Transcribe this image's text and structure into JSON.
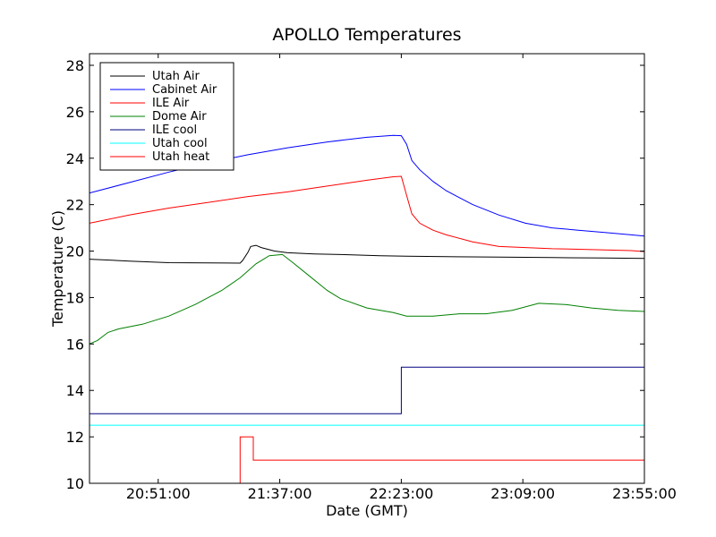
{
  "chart_data": {
    "type": "line",
    "title": "APOLLO Temperatures",
    "xlabel": "Date (GMT)",
    "ylabel": "Temperature (C)",
    "xlim": [
      1225,
      1435
    ],
    "ylim": [
      10,
      28.5
    ],
    "yticks": [
      10,
      12,
      14,
      16,
      18,
      20,
      22,
      24,
      26,
      28
    ],
    "xticks": [
      {
        "value": 1251,
        "label": "20:51:00"
      },
      {
        "value": 1297,
        "label": "21:37:00"
      },
      {
        "value": 1343,
        "label": "22:23:00"
      },
      {
        "value": 1389,
        "label": "23:09:00"
      },
      {
        "value": 1435,
        "label": "23:55:00"
      }
    ],
    "grid": false,
    "legend_position": "upper-left",
    "series": [
      {
        "name": "Utah Air",
        "color": "#000000",
        "points": [
          [
            1225,
            19.65
          ],
          [
            1240,
            19.57
          ],
          [
            1255,
            19.5
          ],
          [
            1282,
            19.48
          ],
          [
            1283,
            19.6
          ],
          [
            1285,
            19.95
          ],
          [
            1286,
            20.2
          ],
          [
            1288,
            20.25
          ],
          [
            1290,
            20.15
          ],
          [
            1295,
            20.0
          ],
          [
            1300,
            19.93
          ],
          [
            1310,
            19.88
          ],
          [
            1320,
            19.85
          ],
          [
            1335,
            19.8
          ],
          [
            1345,
            19.78
          ],
          [
            1360,
            19.76
          ],
          [
            1380,
            19.74
          ],
          [
            1400,
            19.72
          ],
          [
            1420,
            19.7
          ],
          [
            1435,
            19.68
          ]
        ]
      },
      {
        "name": "Cabinet Air",
        "color": "#0000ff",
        "points": [
          [
            1225,
            22.5
          ],
          [
            1240,
            22.95
          ],
          [
            1255,
            23.4
          ],
          [
            1270,
            23.8
          ],
          [
            1285,
            24.15
          ],
          [
            1300,
            24.45
          ],
          [
            1315,
            24.7
          ],
          [
            1330,
            24.9
          ],
          [
            1340,
            24.98
          ],
          [
            1343,
            24.97
          ],
          [
            1345,
            24.6
          ],
          [
            1347,
            23.9
          ],
          [
            1350,
            23.5
          ],
          [
            1355,
            23.0
          ],
          [
            1360,
            22.6
          ],
          [
            1370,
            22.0
          ],
          [
            1380,
            21.55
          ],
          [
            1390,
            21.2
          ],
          [
            1400,
            21.0
          ],
          [
            1410,
            20.9
          ],
          [
            1420,
            20.8
          ],
          [
            1430,
            20.7
          ],
          [
            1435,
            20.65
          ]
        ]
      },
      {
        "name": "ILE Air",
        "color": "#ff0000",
        "points": [
          [
            1225,
            21.2
          ],
          [
            1240,
            21.55
          ],
          [
            1255,
            21.85
          ],
          [
            1270,
            22.1
          ],
          [
            1285,
            22.35
          ],
          [
            1300,
            22.55
          ],
          [
            1315,
            22.8
          ],
          [
            1330,
            23.05
          ],
          [
            1340,
            23.2
          ],
          [
            1343,
            23.22
          ],
          [
            1345,
            22.4
          ],
          [
            1347,
            21.6
          ],
          [
            1350,
            21.2
          ],
          [
            1355,
            20.9
          ],
          [
            1360,
            20.7
          ],
          [
            1370,
            20.4
          ],
          [
            1380,
            20.2
          ],
          [
            1390,
            20.15
          ],
          [
            1400,
            20.1
          ],
          [
            1410,
            20.08
          ],
          [
            1420,
            20.05
          ],
          [
            1430,
            20.02
          ],
          [
            1435,
            19.98
          ]
        ]
      },
      {
        "name": "Dome Air",
        "color": "#008000",
        "points": [
          [
            1225,
            16.0
          ],
          [
            1228,
            16.15
          ],
          [
            1232,
            16.5
          ],
          [
            1236,
            16.65
          ],
          [
            1245,
            16.85
          ],
          [
            1255,
            17.2
          ],
          [
            1265,
            17.7
          ],
          [
            1275,
            18.3
          ],
          [
            1282,
            18.85
          ],
          [
            1288,
            19.45
          ],
          [
            1293,
            19.8
          ],
          [
            1298,
            19.85
          ],
          [
            1302,
            19.5
          ],
          [
            1308,
            18.95
          ],
          [
            1315,
            18.3
          ],
          [
            1320,
            17.95
          ],
          [
            1330,
            17.55
          ],
          [
            1340,
            17.35
          ],
          [
            1345,
            17.2
          ],
          [
            1355,
            17.2
          ],
          [
            1365,
            17.3
          ],
          [
            1375,
            17.3
          ],
          [
            1385,
            17.45
          ],
          [
            1395,
            17.75
          ],
          [
            1405,
            17.7
          ],
          [
            1415,
            17.55
          ],
          [
            1425,
            17.45
          ],
          [
            1435,
            17.4
          ]
        ]
      },
      {
        "name": "ILE cool",
        "color": "#000080",
        "points": [
          [
            1225,
            13.0
          ],
          [
            1343,
            13.0
          ],
          [
            1343,
            15.0
          ],
          [
            1435,
            15.0
          ]
        ]
      },
      {
        "name": "Utah cool",
        "color": "#00ffff",
        "points": [
          [
            1225,
            12.5
          ],
          [
            1435,
            12.5
          ]
        ]
      },
      {
        "name": "Utah heat",
        "color": "#ff0000",
        "points": [
          [
            1282,
            10.0
          ],
          [
            1282,
            12.0
          ],
          [
            1287,
            12.0
          ],
          [
            1287,
            11.0
          ],
          [
            1435,
            11.0
          ]
        ]
      }
    ]
  }
}
